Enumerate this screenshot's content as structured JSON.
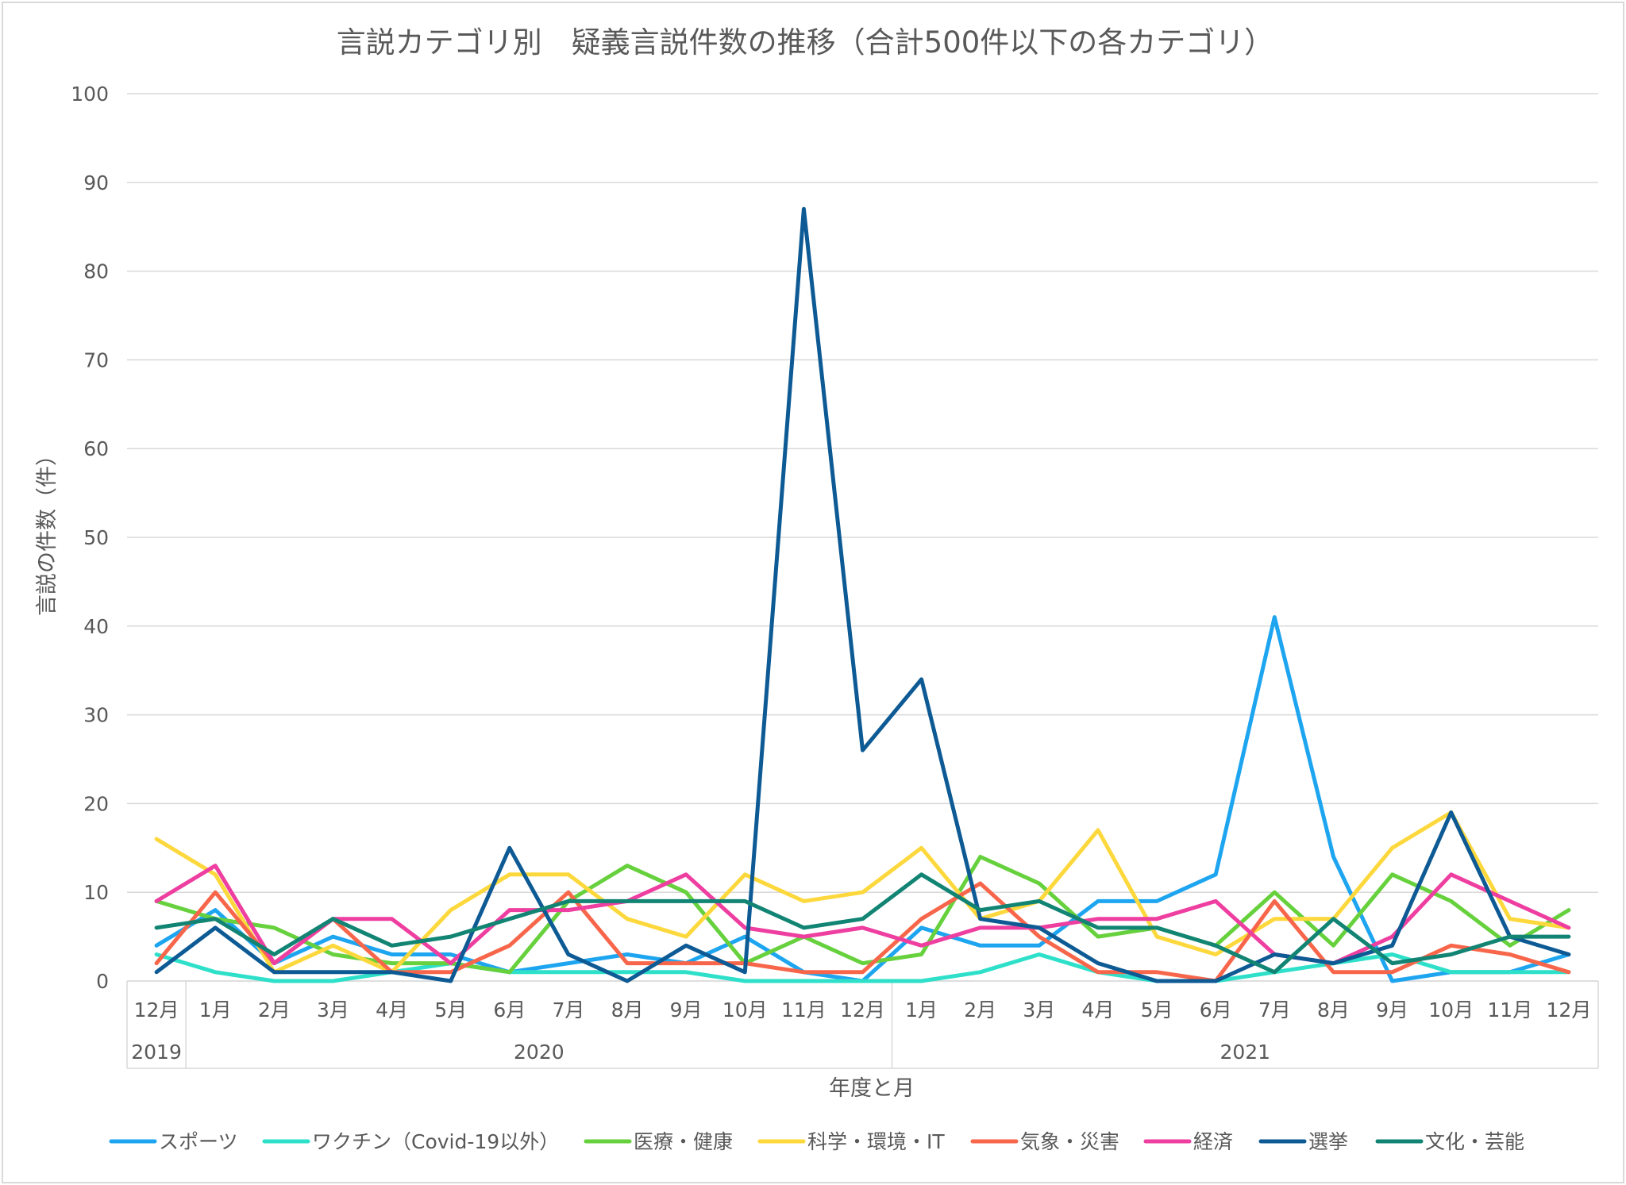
{
  "chart_data": {
    "type": "line",
    "title": "言説カテゴリ別　疑義言説件数の推移（合計500件以下の各カテゴリ）",
    "xlabel": "年度と月",
    "ylabel": "言説の件数（件）",
    "ylim": [
      0,
      100
    ],
    "yticks": [
      "0",
      "10",
      "20",
      "30",
      "40",
      "50",
      "60",
      "70",
      "80",
      "90",
      "100"
    ],
    "grid": true,
    "legend_position": "bottom",
    "categories": [
      "12月",
      "1月",
      "2月",
      "3月",
      "4月",
      "5月",
      "6月",
      "7月",
      "8月",
      "9月",
      "10月",
      "11月",
      "12月",
      "1月",
      "2月",
      "3月",
      "4月",
      "5月",
      "6月",
      "7月",
      "8月",
      "9月",
      "10月",
      "11月",
      "12月"
    ],
    "year_groups": [
      {
        "label": "2019",
        "start": 0,
        "end": 0
      },
      {
        "label": "2020",
        "start": 1,
        "end": 12
      },
      {
        "label": "2021",
        "start": 13,
        "end": 24
      }
    ],
    "series": [
      {
        "name": "スポーツ",
        "color": "#1ea5f0",
        "values": [
          4,
          8,
          2,
          5,
          3,
          3,
          1,
          2,
          3,
          2,
          5,
          1,
          0,
          6,
          4,
          4,
          9,
          9,
          12,
          41,
          14,
          0,
          1,
          1,
          3
        ]
      },
      {
        "name": "ワクチン（Covid-19以外）",
        "color": "#2ee0c9",
        "values": [
          3,
          1,
          0,
          0,
          1,
          2,
          1,
          1,
          1,
          1,
          0,
          0,
          0,
          0,
          1,
          3,
          1,
          0,
          0,
          1,
          2,
          3,
          1,
          1,
          1
        ]
      },
      {
        "name": "医療・健康",
        "color": "#66d13d",
        "values": [
          9,
          7,
          6,
          3,
          2,
          2,
          1,
          9,
          13,
          10,
          2,
          5,
          2,
          3,
          14,
          11,
          5,
          6,
          4,
          10,
          4,
          12,
          9,
          4,
          8
        ]
      },
      {
        "name": "科学・環境・IT",
        "color": "#fdd83c",
        "values": [
          16,
          12,
          1,
          4,
          1,
          8,
          12,
          12,
          7,
          5,
          12,
          9,
          10,
          15,
          7,
          9,
          17,
          5,
          3,
          7,
          7,
          15,
          19,
          7,
          6
        ]
      },
      {
        "name": "気象・災害",
        "color": "#f7664a",
        "values": [
          2,
          10,
          2,
          7,
          1,
          1,
          4,
          10,
          2,
          2,
          2,
          1,
          1,
          7,
          11,
          5,
          1,
          1,
          0,
          9,
          1,
          1,
          4,
          3,
          1
        ]
      },
      {
        "name": "経済",
        "color": "#ee3fa1",
        "values": [
          9,
          13,
          2,
          7,
          7,
          2,
          8,
          8,
          9,
          12,
          6,
          5,
          6,
          4,
          6,
          6,
          7,
          7,
          9,
          3,
          2,
          5,
          12,
          9,
          6
        ]
      },
      {
        "name": "選挙",
        "color": "#0d5a94",
        "values": [
          1,
          6,
          1,
          1,
          1,
          0,
          15,
          3,
          0,
          4,
          1,
          87,
          26,
          34,
          7,
          6,
          2,
          0,
          0,
          3,
          2,
          4,
          19,
          5,
          3
        ]
      },
      {
        "name": "文化・芸能",
        "color": "#128474",
        "values": [
          6,
          7,
          3,
          7,
          4,
          5,
          7,
          9,
          9,
          9,
          9,
          6,
          7,
          12,
          8,
          9,
          6,
          6,
          4,
          1,
          7,
          2,
          3,
          5,
          5
        ]
      }
    ]
  }
}
